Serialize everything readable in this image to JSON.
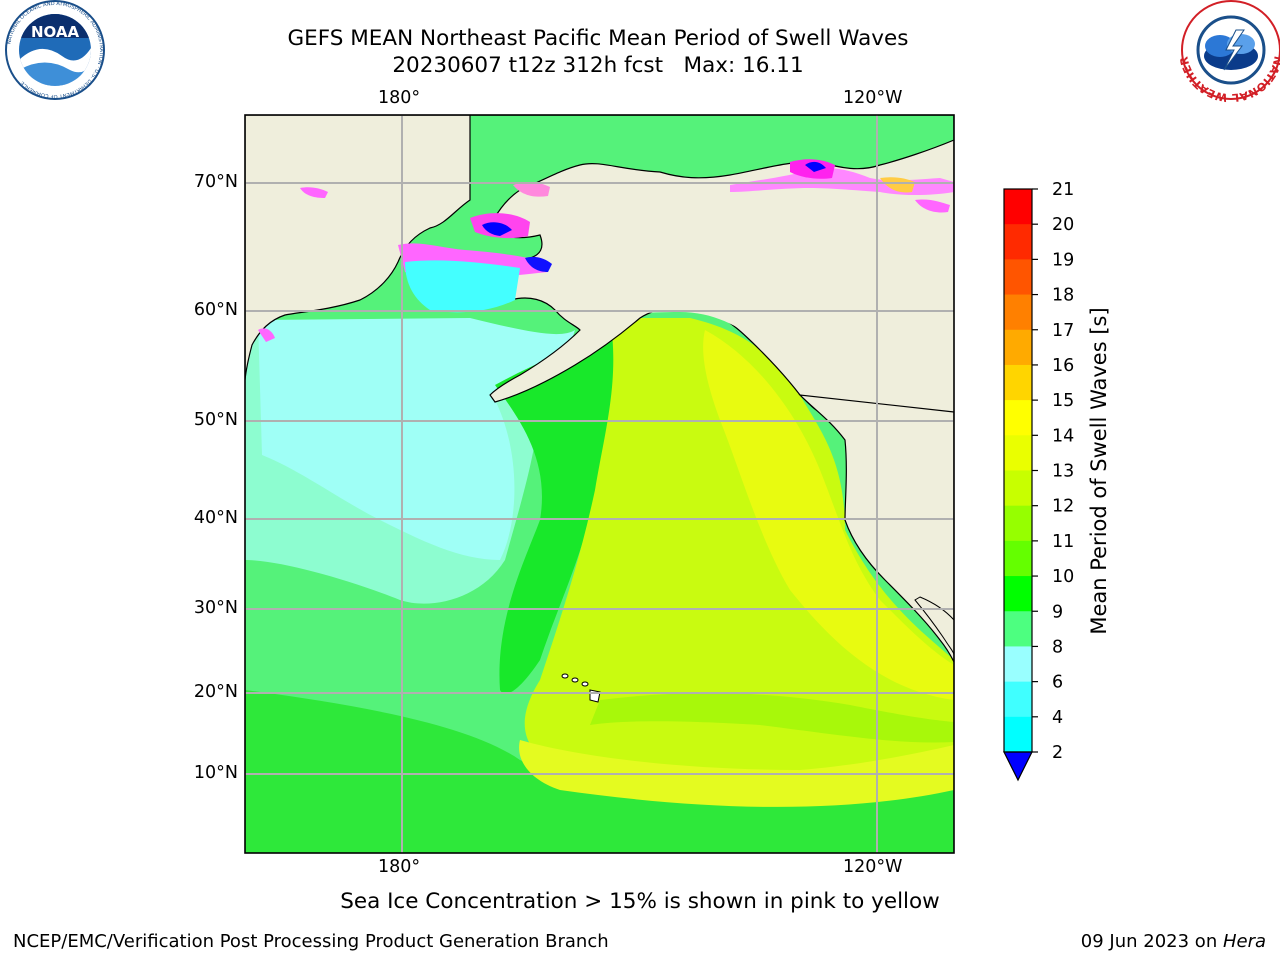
{
  "title": {
    "line1": "GEFS MEAN Northeast Pacific Mean Period of Swell Waves",
    "line2": "20230607 t12z 312h fcst   Max: 16.11"
  },
  "map": {
    "top_longitude_labels": [
      "180°",
      "120°W"
    ],
    "bottom_longitude_labels": [
      "180°",
      "120°W"
    ],
    "latitude_labels": [
      "70°N",
      "60°N",
      "50°N",
      "40°N",
      "30°N",
      "20°N",
      "10°N"
    ],
    "land_color": "#efeedc",
    "grid_color": "#b0b0b0"
  },
  "colorbar": {
    "label": "Mean Period of Swell Waves [s]",
    "ticks": [
      "21",
      "20",
      "19",
      "18",
      "17",
      "16",
      "15",
      "14",
      "13",
      "12",
      "11",
      "10",
      "9",
      "8",
      "6",
      "4",
      "2"
    ],
    "colors_top_to_bottom": [
      "#ff0000",
      "#ff2a00",
      "#ff5500",
      "#ff8000",
      "#ffaa00",
      "#ffd500",
      "#ffff00",
      "#eaff00",
      "#c8ff00",
      "#96ff00",
      "#64ff00",
      "#00ff00",
      "#4dff80",
      "#99ffff",
      "#40ffff",
      "#00ffff",
      "#00c8ff",
      "#0080ff"
    ],
    "extend_color": "#0000ff"
  },
  "logos": {
    "noaa_text": "NOAA",
    "noaa_ring_text": "NATIONAL OCEANIC AND ATMOSPHERIC ADMINISTRATION · U.S. DEPARTMENT OF COMMERCE",
    "nws_ring_text": "NATIONAL WEATHER SERVICE"
  },
  "note": "Sea Ice Concentration > 15% is shown in pink to yellow",
  "footer": {
    "left": "NCEP/EMC/Verification Post Processing Product Generation Branch",
    "right_date": "09 Jun 2023 on ",
    "right_host": "Hera"
  }
}
